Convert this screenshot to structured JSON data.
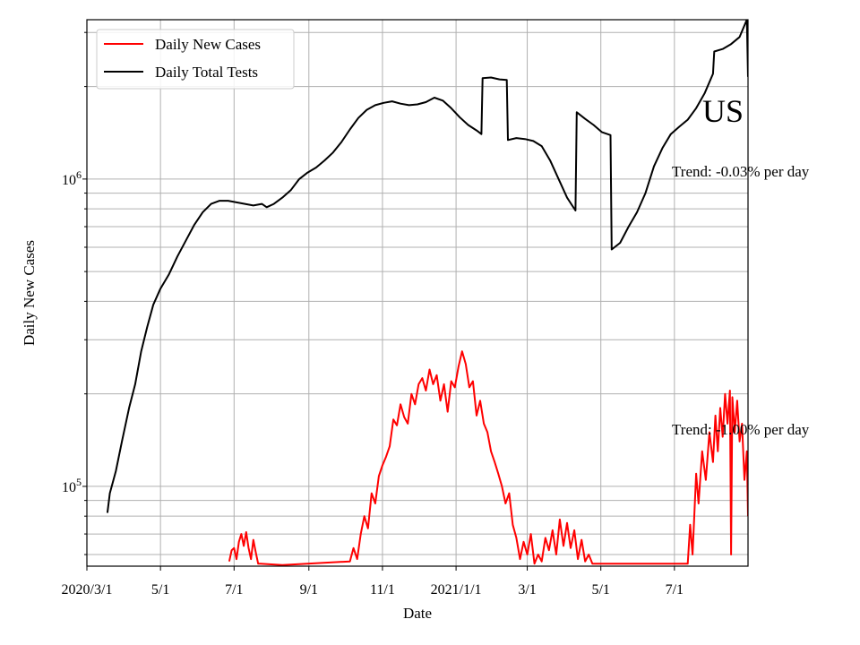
{
  "chart_data": {
    "type": "line",
    "title": "US",
    "xlabel": "Date",
    "ylabel": "Daily New Cases",
    "yscale": "log",
    "grid": true,
    "legend_placement": "top-left",
    "x_range": [
      "2020-03-01",
      "2021-08-31"
    ],
    "ylim": [
      55000,
      3300000
    ],
    "x_ticks": [
      {
        "date": "2020-03-01",
        "label": "2020/3/1"
      },
      {
        "date": "2020-05-01",
        "label": "5/1"
      },
      {
        "date": "2020-07-01",
        "label": "7/1"
      },
      {
        "date": "2020-09-01",
        "label": "9/1"
      },
      {
        "date": "2020-11-01",
        "label": "11/1"
      },
      {
        "date": "2021-01-01",
        "label": "2021/1/1"
      },
      {
        "date": "2021-03-01",
        "label": "3/1"
      },
      {
        "date": "2021-05-01",
        "label": "5/1"
      },
      {
        "date": "2021-07-01",
        "label": "7/1"
      }
    ],
    "y_ticks": [
      {
        "value": 100000,
        "base": "10",
        "exp": "5"
      },
      {
        "value": 1000000,
        "base": "10",
        "exp": "6"
      }
    ],
    "series": [
      {
        "name": "Daily New Cases",
        "color": "#ff0000",
        "points": [
          [
            "2020-06-27",
            57000
          ],
          [
            "2020-06-29",
            62000
          ],
          [
            "2020-07-01",
            63000
          ],
          [
            "2020-07-03",
            58000
          ],
          [
            "2020-07-05",
            66000
          ],
          [
            "2020-07-07",
            70000
          ],
          [
            "2020-07-09",
            64000
          ],
          [
            "2020-07-11",
            71000
          ],
          [
            "2020-07-13",
            63000
          ],
          [
            "2020-07-15",
            58000
          ],
          [
            "2020-07-17",
            67000
          ],
          [
            "2020-07-19",
            61000
          ],
          [
            "2020-07-21",
            56000
          ],
          [
            "2020-07-23",
            56000
          ],
          [
            "2020-08-10",
            55500
          ],
          [
            "2020-10-05",
            57000
          ],
          [
            "2020-10-08",
            63000
          ],
          [
            "2020-10-11",
            58000
          ],
          [
            "2020-10-14",
            70000
          ],
          [
            "2020-10-17",
            80000
          ],
          [
            "2020-10-20",
            73000
          ],
          [
            "2020-10-23",
            95000
          ],
          [
            "2020-10-26",
            88000
          ],
          [
            "2020-10-29",
            108000
          ],
          [
            "2020-11-01",
            117000
          ],
          [
            "2020-11-04",
            125000
          ],
          [
            "2020-11-07",
            135000
          ],
          [
            "2020-11-10",
            165000
          ],
          [
            "2020-11-13",
            158000
          ],
          [
            "2020-11-16",
            185000
          ],
          [
            "2020-11-19",
            168000
          ],
          [
            "2020-11-22",
            160000
          ],
          [
            "2020-11-25",
            200000
          ],
          [
            "2020-11-28",
            185000
          ],
          [
            "2020-12-01",
            215000
          ],
          [
            "2020-12-04",
            225000
          ],
          [
            "2020-12-07",
            205000
          ],
          [
            "2020-12-10",
            240000
          ],
          [
            "2020-12-13",
            215000
          ],
          [
            "2020-12-16",
            230000
          ],
          [
            "2020-12-19",
            190000
          ],
          [
            "2020-12-22",
            215000
          ],
          [
            "2020-12-25",
            175000
          ],
          [
            "2020-12-28",
            220000
          ],
          [
            "2020-12-31",
            210000
          ],
          [
            "2021-01-03",
            245000
          ],
          [
            "2021-01-06",
            275000
          ],
          [
            "2021-01-09",
            250000
          ],
          [
            "2021-01-12",
            210000
          ],
          [
            "2021-01-15",
            220000
          ],
          [
            "2021-01-18",
            170000
          ],
          [
            "2021-01-21",
            190000
          ],
          [
            "2021-01-24",
            160000
          ],
          [
            "2021-01-27",
            150000
          ],
          [
            "2021-01-30",
            130000
          ],
          [
            "2021-02-02",
            120000
          ],
          [
            "2021-02-05",
            110000
          ],
          [
            "2021-02-08",
            100000
          ],
          [
            "2021-02-11",
            88000
          ],
          [
            "2021-02-14",
            95000
          ],
          [
            "2021-02-17",
            75000
          ],
          [
            "2021-02-20",
            68000
          ],
          [
            "2021-02-23",
            58000
          ],
          [
            "2021-02-26",
            66000
          ],
          [
            "2021-03-01",
            60000
          ],
          [
            "2021-03-04",
            70000
          ],
          [
            "2021-03-07",
            56000
          ],
          [
            "2021-03-10",
            60000
          ],
          [
            "2021-03-13",
            57000
          ],
          [
            "2021-03-16",
            68000
          ],
          [
            "2021-03-19",
            62000
          ],
          [
            "2021-03-22",
            72000
          ],
          [
            "2021-03-25",
            60000
          ],
          [
            "2021-03-28",
            78000
          ],
          [
            "2021-03-31",
            64000
          ],
          [
            "2021-04-03",
            76000
          ],
          [
            "2021-04-06",
            63000
          ],
          [
            "2021-04-09",
            72000
          ],
          [
            "2021-04-12",
            58000
          ],
          [
            "2021-04-15",
            67000
          ],
          [
            "2021-04-18",
            57000
          ],
          [
            "2021-04-21",
            60000
          ],
          [
            "2021-04-24",
            56000
          ],
          [
            "2021-07-12",
            56000
          ],
          [
            "2021-07-14",
            75000
          ],
          [
            "2021-07-16",
            60000
          ],
          [
            "2021-07-19",
            110000
          ],
          [
            "2021-07-21",
            88000
          ],
          [
            "2021-07-24",
            130000
          ],
          [
            "2021-07-27",
            105000
          ],
          [
            "2021-07-30",
            150000
          ],
          [
            "2021-08-02",
            120000
          ],
          [
            "2021-08-04",
            170000
          ],
          [
            "2021-08-06",
            130000
          ],
          [
            "2021-08-08",
            180000
          ],
          [
            "2021-08-10",
            145000
          ],
          [
            "2021-08-12",
            200000
          ],
          [
            "2021-08-14",
            160000
          ],
          [
            "2021-08-16",
            205000
          ],
          [
            "2021-08-17",
            60000
          ],
          [
            "2021-08-18",
            195000
          ],
          [
            "2021-08-20",
            150000
          ],
          [
            "2021-08-22",
            190000
          ],
          [
            "2021-08-24",
            140000
          ],
          [
            "2021-08-26",
            160000
          ],
          [
            "2021-08-28",
            105000
          ],
          [
            "2021-08-30",
            130000
          ],
          [
            "2021-08-31",
            80000
          ]
        ]
      },
      {
        "name": "Daily Total Tests",
        "color": "#000000",
        "points": [
          [
            "2020-03-18",
            82000
          ],
          [
            "2020-03-20",
            95000
          ],
          [
            "2020-03-25",
            112000
          ],
          [
            "2020-03-30",
            140000
          ],
          [
            "2020-04-05",
            180000
          ],
          [
            "2020-04-10",
            215000
          ],
          [
            "2020-04-15",
            275000
          ],
          [
            "2020-04-20",
            330000
          ],
          [
            "2020-04-25",
            390000
          ],
          [
            "2020-05-01",
            440000
          ],
          [
            "2020-05-08",
            490000
          ],
          [
            "2020-05-15",
            560000
          ],
          [
            "2020-05-22",
            630000
          ],
          [
            "2020-05-29",
            710000
          ],
          [
            "2020-06-05",
            780000
          ],
          [
            "2020-06-12",
            830000
          ],
          [
            "2020-06-19",
            850000
          ],
          [
            "2020-06-26",
            850000
          ],
          [
            "2020-07-03",
            840000
          ],
          [
            "2020-07-10",
            830000
          ],
          [
            "2020-07-17",
            820000
          ],
          [
            "2020-07-24",
            830000
          ],
          [
            "2020-07-28",
            810000
          ],
          [
            "2020-08-03",
            830000
          ],
          [
            "2020-08-10",
            870000
          ],
          [
            "2020-08-17",
            920000
          ],
          [
            "2020-08-24",
            1000000
          ],
          [
            "2020-08-31",
            1050000
          ],
          [
            "2020-09-07",
            1090000
          ],
          [
            "2020-09-14",
            1150000
          ],
          [
            "2020-09-21",
            1220000
          ],
          [
            "2020-09-28",
            1320000
          ],
          [
            "2020-10-05",
            1450000
          ],
          [
            "2020-10-12",
            1580000
          ],
          [
            "2020-10-19",
            1680000
          ],
          [
            "2020-10-26",
            1740000
          ],
          [
            "2020-11-02",
            1770000
          ],
          [
            "2020-11-09",
            1790000
          ],
          [
            "2020-11-16",
            1760000
          ],
          [
            "2020-11-23",
            1740000
          ],
          [
            "2020-11-30",
            1750000
          ],
          [
            "2020-12-07",
            1780000
          ],
          [
            "2020-12-14",
            1840000
          ],
          [
            "2020-12-21",
            1800000
          ],
          [
            "2020-12-28",
            1700000
          ],
          [
            "2021-01-04",
            1590000
          ],
          [
            "2021-01-11",
            1500000
          ],
          [
            "2021-01-18",
            1440000
          ],
          [
            "2021-01-22",
            1400000
          ],
          [
            "2021-01-23",
            2130000
          ],
          [
            "2021-01-30",
            2140000
          ],
          [
            "2021-02-06",
            2110000
          ],
          [
            "2021-02-12",
            2100000
          ],
          [
            "2021-02-13",
            1340000
          ],
          [
            "2021-02-20",
            1360000
          ],
          [
            "2021-02-27",
            1350000
          ],
          [
            "2021-03-06",
            1330000
          ],
          [
            "2021-03-13",
            1280000
          ],
          [
            "2021-03-20",
            1150000
          ],
          [
            "2021-03-27",
            1000000
          ],
          [
            "2021-04-03",
            870000
          ],
          [
            "2021-04-10",
            790000
          ],
          [
            "2021-04-11",
            1650000
          ],
          [
            "2021-04-18",
            1570000
          ],
          [
            "2021-04-25",
            1500000
          ],
          [
            "2021-05-02",
            1420000
          ],
          [
            "2021-05-09",
            1390000
          ],
          [
            "2021-05-10",
            590000
          ],
          [
            "2021-05-17",
            620000
          ],
          [
            "2021-05-24",
            700000
          ],
          [
            "2021-05-31",
            780000
          ],
          [
            "2021-06-07",
            900000
          ],
          [
            "2021-06-14",
            1100000
          ],
          [
            "2021-06-21",
            1260000
          ],
          [
            "2021-06-28",
            1400000
          ],
          [
            "2021-07-05",
            1480000
          ],
          [
            "2021-07-12",
            1560000
          ],
          [
            "2021-07-19",
            1700000
          ],
          [
            "2021-07-26",
            1900000
          ],
          [
            "2021-08-02",
            2200000
          ],
          [
            "2021-08-03",
            2600000
          ],
          [
            "2021-08-10",
            2650000
          ],
          [
            "2021-08-17",
            2750000
          ],
          [
            "2021-08-24",
            2900000
          ],
          [
            "2021-08-30",
            3300000
          ],
          [
            "2021-08-31",
            2150000
          ]
        ]
      }
    ],
    "annotations": [
      {
        "id": "tests_trend",
        "text": "Trend: -0.03% per day"
      },
      {
        "id": "cases_trend",
        "text": "Trend: -1.00% per day"
      }
    ]
  }
}
